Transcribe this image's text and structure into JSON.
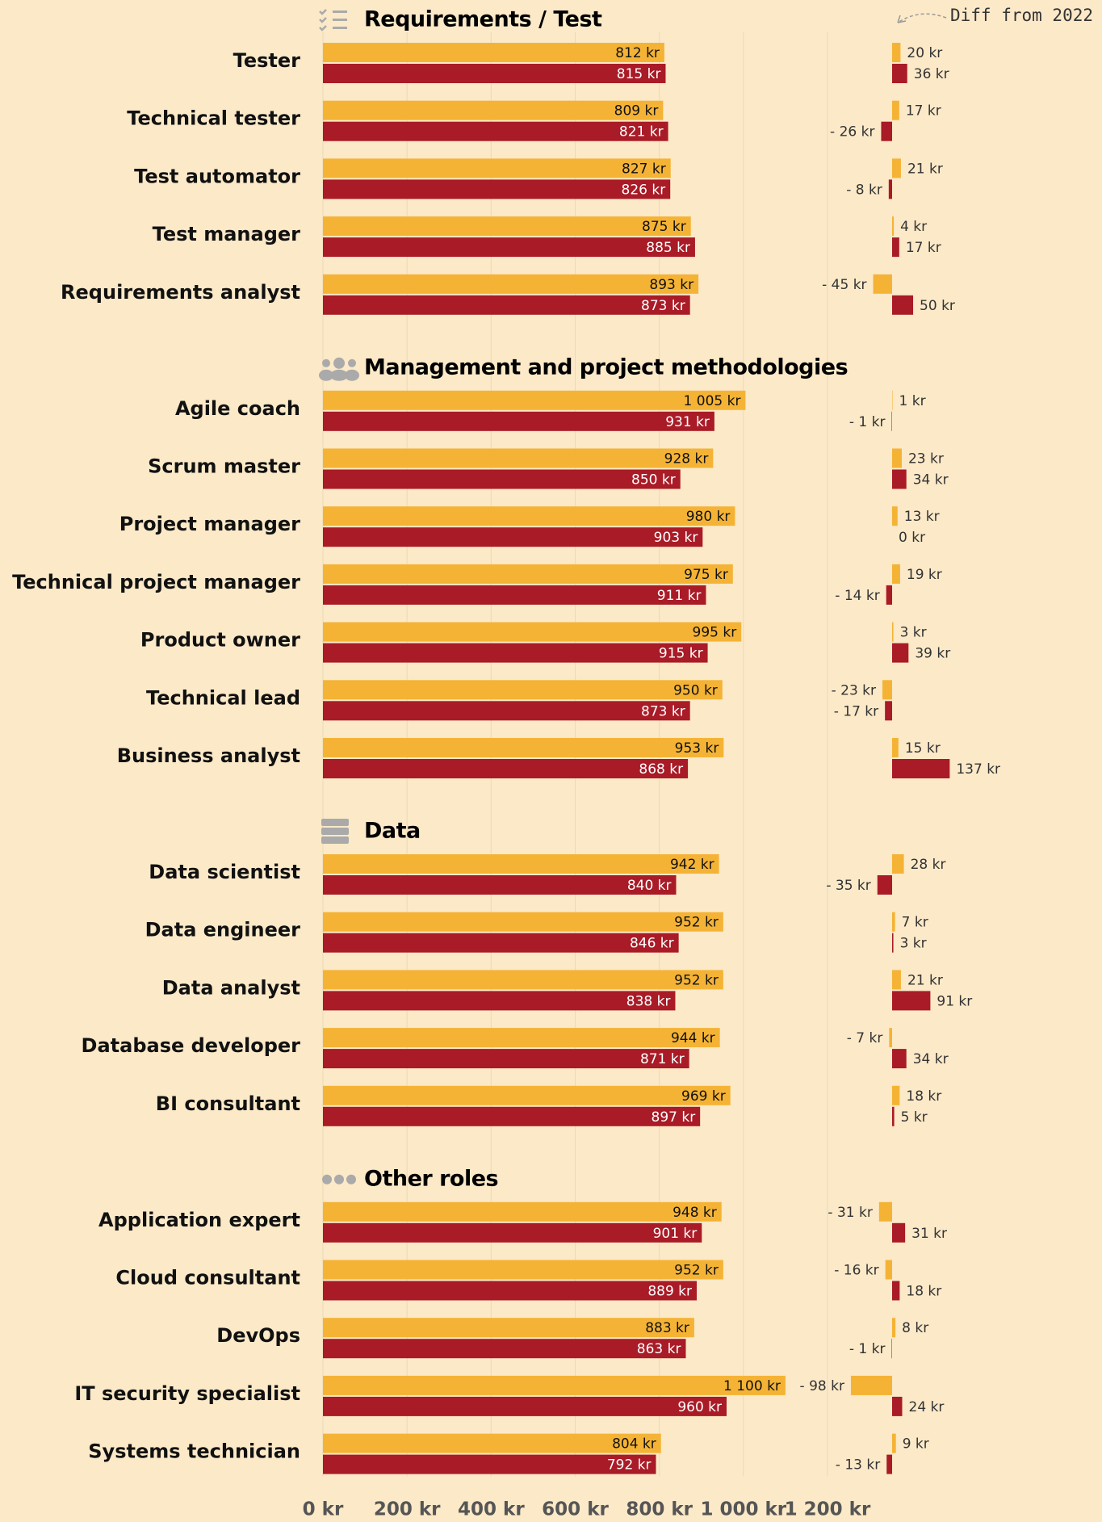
{
  "chart_data": {
    "type": "bar",
    "orientation": "horizontal",
    "grid": true,
    "annotation": "Diff from 2022",
    "xlim": [
      0,
      1200
    ],
    "xticks": [
      {
        "value": 0,
        "label": "0 kr"
      },
      {
        "value": 200,
        "label": "200 kr"
      },
      {
        "value": 400,
        "label": "400 kr"
      },
      {
        "value": 600,
        "label": "600 kr"
      },
      {
        "value": 800,
        "label": "800 kr"
      },
      {
        "value": 1000,
        "label": "1 000 kr"
      },
      {
        "value": 1200,
        "label": "1 200 kr"
      }
    ],
    "sections": [
      {
        "title": "Requirements / Test",
        "categories": [
          "Tester",
          "Technical tester",
          "Test automator",
          "Test manager",
          "Requirements analyst"
        ],
        "series": [
          {
            "color": "#f5b335",
            "values": [
              812,
              809,
              827,
              875,
              893
            ],
            "value_labels": [
              "812 kr",
              "809 kr",
              "827 kr",
              "875 kr",
              "893 kr"
            ]
          },
          {
            "color": "#a91b26",
            "values": [
              815,
              821,
              826,
              885,
              873
            ],
            "value_labels": [
              "815 kr",
              "821 kr",
              "826 kr",
              "885 kr",
              "873 kr"
            ]
          }
        ],
        "diff_series": [
          {
            "color": "#f5b335",
            "values": [
              20,
              17,
              21,
              4,
              -45
            ],
            "value_labels": [
              "20 kr",
              "17 kr",
              "21 kr",
              "4 kr",
              "- 45 kr"
            ]
          },
          {
            "color": "#a91b26",
            "values": [
              36,
              -26,
              -8,
              17,
              50
            ],
            "value_labels": [
              "36 kr",
              "- 26 kr",
              "- 8 kr",
              "17 kr",
              "50 kr"
            ]
          }
        ]
      },
      {
        "title": "Management and project methodologies",
        "categories": [
          "Agile coach",
          "Scrum master",
          "Project manager",
          "Technical project manager",
          "Product owner",
          "Technical lead",
          "Business analyst"
        ],
        "series": [
          {
            "color": "#f5b335",
            "values": [
              1005,
              928,
              980,
              975,
              995,
              950,
              953
            ],
            "value_labels": [
              "1 005 kr",
              "928 kr",
              "980 kr",
              "975 kr",
              "995 kr",
              "950 kr",
              "953 kr"
            ]
          },
          {
            "color": "#a91b26",
            "values": [
              931,
              850,
              903,
              911,
              915,
              873,
              868
            ],
            "value_labels": [
              "931 kr",
              "850 kr",
              "903 kr",
              "911 kr",
              "915 kr",
              "873 kr",
              "868 kr"
            ]
          }
        ],
        "diff_series": [
          {
            "color": "#f5b335",
            "values": [
              1,
              23,
              13,
              19,
              3,
              -23,
              15
            ],
            "value_labels": [
              "1 kr",
              "23 kr",
              "13 kr",
              "19 kr",
              "3 kr",
              "- 23 kr",
              "15 kr"
            ]
          },
          {
            "color": "#a91b26",
            "values": [
              -1,
              34,
              0,
              -14,
              39,
              -17,
              137
            ],
            "value_labels": [
              "- 1 kr",
              "34 kr",
              "0 kr",
              "- 14 kr",
              "39 kr",
              "- 17 kr",
              "137 kr"
            ]
          }
        ]
      },
      {
        "title": "Data",
        "categories": [
          "Data scientist",
          "Data engineer",
          "Data analyst",
          "Database developer",
          "BI consultant"
        ],
        "series": [
          {
            "color": "#f5b335",
            "values": [
              942,
              952,
              952,
              944,
              969
            ],
            "value_labels": [
              "942 kr",
              "952 kr",
              "952 kr",
              "944 kr",
              "969 kr"
            ]
          },
          {
            "color": "#a91b26",
            "values": [
              840,
              846,
              838,
              871,
              897
            ],
            "value_labels": [
              "840 kr",
              "846 kr",
              "838 kr",
              "871 kr",
              "897 kr"
            ]
          }
        ],
        "diff_series": [
          {
            "color": "#f5b335",
            "values": [
              28,
              7,
              21,
              -7,
              18
            ],
            "value_labels": [
              "28 kr",
              "7 kr",
              "21 kr",
              "- 7 kr",
              "18 kr"
            ]
          },
          {
            "color": "#a91b26",
            "values": [
              -35,
              3,
              91,
              34,
              5
            ],
            "value_labels": [
              "- 35 kr",
              "3 kr",
              "91 kr",
              "34 kr",
              "5 kr"
            ]
          }
        ]
      },
      {
        "title": "Other roles",
        "categories": [
          "Application expert",
          "Cloud consultant",
          "DevOps",
          "IT security specialist",
          "Systems technician"
        ],
        "series": [
          {
            "color": "#f5b335",
            "values": [
              948,
              952,
              883,
              1100,
              804
            ],
            "value_labels": [
              "948 kr",
              "952 kr",
              "883 kr",
              "1 100 kr",
              "804 kr"
            ]
          },
          {
            "color": "#a91b26",
            "values": [
              901,
              889,
              863,
              960,
              792
            ],
            "value_labels": [
              "901 kr",
              "889 kr",
              "863 kr",
              "960 kr",
              "792 kr"
            ]
          }
        ],
        "diff_series": [
          {
            "color": "#f5b335",
            "values": [
              -31,
              -16,
              8,
              -98,
              9
            ],
            "value_labels": [
              "- 31 kr",
              "- 16 kr",
              "8 kr",
              "- 98 kr",
              "9 kr"
            ]
          },
          {
            "color": "#a91b26",
            "values": [
              31,
              18,
              -1,
              24,
              -13
            ],
            "value_labels": [
              "31 kr",
              "18 kr",
              "- 1 kr",
              "24 kr",
              "- 13 kr"
            ]
          }
        ]
      }
    ]
  }
}
